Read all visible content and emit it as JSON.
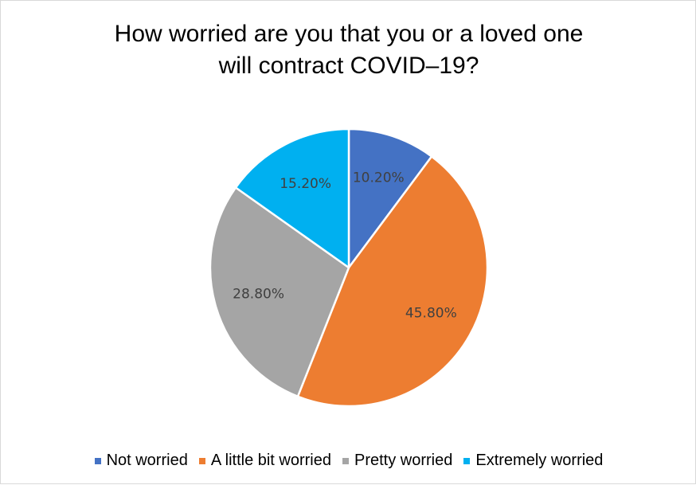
{
  "chart_data": {
    "type": "pie",
    "title": [
      "How worried are you that you or a loved one",
      "will contract COVID–19?"
    ],
    "categories": [
      "Not worried",
      "A little bit worried",
      "Pretty worried",
      "Extremely worried"
    ],
    "values": [
      10.2,
      45.8,
      28.8,
      15.2
    ],
    "data_labels": [
      "10.20%",
      "45.80%",
      "28.80%",
      "15.20%"
    ],
    "colors": [
      "#4472C4",
      "#ED7D31",
      "#A5A5A5",
      "#00B0F0"
    ],
    "legend_position": "bottom"
  }
}
